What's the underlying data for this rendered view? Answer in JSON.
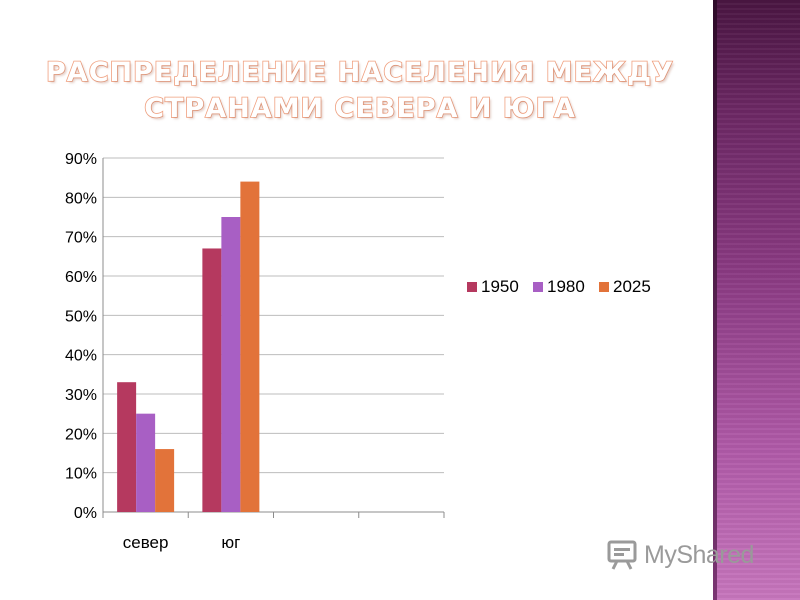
{
  "slide": {
    "title_line1": "РАСПРЕДЕЛЕНИЕ НАСЕЛЕНИЯ МЕЖДУ",
    "title_line2": "СТРАНАМИ СЕВЕРА И ЮГА",
    "watermark": "MyShared",
    "watermark_icon": "presentation-board-icon"
  },
  "colors": {
    "1950": "#b5395f",
    "1980": "#a85fc4",
    "2025": "#e2733a",
    "side_band": "#7a3572"
  },
  "chart_data": {
    "type": "bar",
    "title": "",
    "xlabel": "",
    "ylabel": "",
    "categories": [
      "север",
      "юг",
      "",
      ""
    ],
    "series": [
      {
        "name": "1950",
        "values": [
          33,
          67,
          null,
          null
        ]
      },
      {
        "name": "1980",
        "values": [
          25,
          75,
          null,
          null
        ]
      },
      {
        "name": "2025",
        "values": [
          16,
          84,
          null,
          null
        ]
      }
    ],
    "ylim": [
      0,
      90
    ],
    "yticks": [
      0,
      10,
      20,
      30,
      40,
      50,
      60,
      70,
      80,
      90
    ],
    "ytick_labels": [
      "0%",
      "10%",
      "20%",
      "30%",
      "40%",
      "50%",
      "60%",
      "70%",
      "80%",
      "90%"
    ],
    "grid": true,
    "legend_position": "right"
  }
}
